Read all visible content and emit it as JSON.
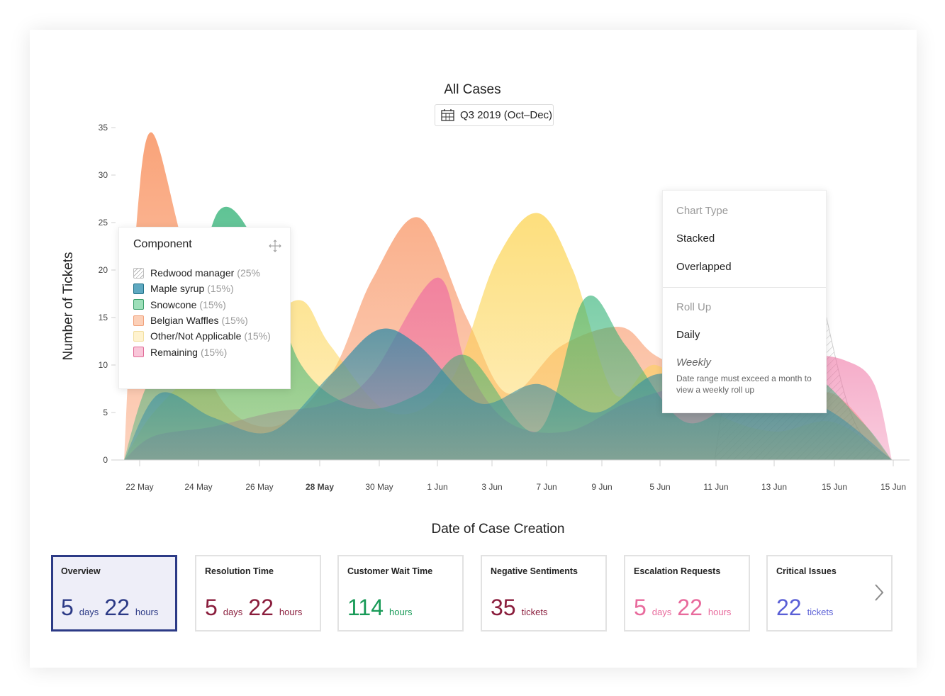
{
  "chart_data": {
    "type": "area",
    "title": "All Cases",
    "xlabel": "Date of Case Creation",
    "ylabel": "Number of Tickets",
    "ylim": [
      0,
      35
    ],
    "yticks": [
      0,
      5,
      10,
      15,
      20,
      25,
      30,
      35
    ],
    "categories": [
      "22 May",
      "24 May",
      "26 May",
      "28 May",
      "30 May",
      "1 Jun",
      "3 Jun",
      "7 Jun",
      "9 Jun",
      "5 Jun",
      "11 Jun",
      "13 Jun",
      "15 Jun",
      "15 Jun"
    ],
    "series": [
      {
        "name": "Redwood manager",
        "pattern": "hatch",
        "color": "#bdbdbd",
        "points": [
          [
            10,
            0
          ],
          [
            10.5,
            20
          ],
          [
            11.0,
            27.5
          ],
          [
            11.5,
            25
          ],
          [
            12.3,
            5
          ],
          [
            13,
            0
          ]
        ]
      },
      {
        "name": "Maple syrup",
        "color": "#2d8aa6",
        "points": [
          [
            0,
            0
          ],
          [
            0.6,
            7
          ],
          [
            1.5,
            4.5
          ],
          [
            2.5,
            3
          ],
          [
            3.5,
            9
          ],
          [
            4.3,
            13.7
          ],
          [
            5,
            12
          ],
          [
            6,
            6
          ],
          [
            7,
            8
          ],
          [
            8,
            5
          ],
          [
            9,
            9
          ],
          [
            10,
            8
          ],
          [
            11,
            7.5
          ],
          [
            12,
            5
          ],
          [
            13,
            0
          ]
        ]
      },
      {
        "name": "Snowcone",
        "color": "#27ae6f",
        "points": [
          [
            0,
            0
          ],
          [
            0.4,
            8
          ],
          [
            1,
            12
          ],
          [
            1.6,
            26.2
          ],
          [
            2.3,
            22
          ],
          [
            3,
            10
          ],
          [
            4,
            5.5
          ],
          [
            5,
            7
          ],
          [
            5.8,
            11
          ],
          [
            7,
            3
          ],
          [
            7.8,
            17
          ],
          [
            8.5,
            12
          ],
          [
            9.5,
            4
          ],
          [
            10.5,
            7
          ],
          [
            11.5,
            9.5
          ],
          [
            12.5,
            4
          ],
          [
            13,
            0
          ]
        ]
      },
      {
        "name": "Belgian Waffles",
        "color": "#f7834a",
        "points": [
          [
            0,
            0
          ],
          [
            0.2,
            24
          ],
          [
            0.45,
            34.5
          ],
          [
            0.9,
            25
          ],
          [
            1.5,
            8
          ],
          [
            2.5,
            3.5
          ],
          [
            3.5,
            9
          ],
          [
            4.2,
            19
          ],
          [
            5.0,
            25.5
          ],
          [
            5.8,
            15
          ],
          [
            6.5,
            7
          ],
          [
            7.4,
            12
          ],
          [
            8.4,
            14
          ],
          [
            9,
            11
          ],
          [
            10,
            8
          ],
          [
            11,
            5
          ],
          [
            12,
            7
          ],
          [
            13,
            0
          ]
        ]
      },
      {
        "name": "Other/Not Applicable",
        "color": "#fcd34f",
        "points": [
          [
            0,
            0
          ],
          [
            0.5,
            5
          ],
          [
            1.5,
            11
          ],
          [
            2.3,
            14
          ],
          [
            3,
            16.8
          ],
          [
            3.5,
            12
          ],
          [
            4.5,
            5
          ],
          [
            5.5,
            8
          ],
          [
            6.3,
            21
          ],
          [
            7,
            26
          ],
          [
            7.6,
            20
          ],
          [
            8.3,
            7
          ],
          [
            9,
            10
          ],
          [
            10,
            5
          ],
          [
            11,
            3
          ],
          [
            12,
            4
          ],
          [
            13,
            0
          ]
        ]
      },
      {
        "name": "Remaining",
        "color": "#ee6fa1",
        "points": [
          [
            0,
            0
          ],
          [
            0.5,
            2.5
          ],
          [
            1.5,
            3.5
          ],
          [
            2.5,
            5
          ],
          [
            3.5,
            6
          ],
          [
            4.2,
            9
          ],
          [
            5.3,
            19.2
          ],
          [
            5.8,
            10
          ],
          [
            6.5,
            4
          ],
          [
            7.5,
            3
          ],
          [
            8.5,
            6
          ],
          [
            9.5,
            8
          ],
          [
            10.5,
            10
          ],
          [
            11.5,
            11
          ],
          [
            12.2,
            10.5
          ],
          [
            12.7,
            8
          ],
          [
            13,
            0
          ]
        ]
      }
    ],
    "grid": false,
    "legend_position": "left"
  },
  "date_filter": {
    "label": "Q3 2019 (Oct–Dec)",
    "icon": "calendar-icon"
  },
  "legend": {
    "title": "Component",
    "move_icon": "move-icon",
    "items": [
      {
        "name": "Redwood manager",
        "pct": "(25%",
        "color": "#bdbdbd",
        "fill": "#f3f3f3",
        "pattern": "hatch"
      },
      {
        "name": "Maple syrup",
        "pct": "(15%)",
        "color": "#1e6f86",
        "fill": "#5fa9c1"
      },
      {
        "name": "Snowcone",
        "pct": "(15%)",
        "color": "#3a9e6a",
        "fill": "#9ddfb9"
      },
      {
        "name": "Belgian Waffles",
        "pct": "(15%)",
        "color": "#f0a07a",
        "fill": "#fcd0b8"
      },
      {
        "name": "Other/Not Applicable",
        "pct": "(15%)",
        "color": "#f2dfa0",
        "fill": "#fff3cf"
      },
      {
        "name": "Remaining",
        "pct": "(15%)",
        "color": "#e06a97",
        "fill": "#f9c6d9"
      }
    ]
  },
  "menu": {
    "chart_type_header": "Chart Type",
    "stacked": "Stacked",
    "overlapped": "Overlapped",
    "roll_up_header": "Roll Up",
    "daily": "Daily",
    "weekly": "Weekly",
    "weekly_note": "Date range must exceed a month to view a weekly roll up"
  },
  "metrics": [
    {
      "title": "Overview",
      "active": true,
      "color": "#2c3a86",
      "parts": [
        [
          "5",
          "days"
        ],
        [
          "22",
          "hours"
        ]
      ]
    },
    {
      "title": "Resolution Time",
      "color": "#8a1d3c",
      "parts": [
        [
          "5",
          "days"
        ],
        [
          "22",
          "hours"
        ]
      ]
    },
    {
      "title": "Customer Wait Time",
      "color": "#189a57",
      "parts": [
        [
          "114",
          "hours"
        ]
      ]
    },
    {
      "title": "Negative Sentiments",
      "color": "#8a1d3c",
      "parts": [
        [
          "35",
          "tickets"
        ]
      ]
    },
    {
      "title": "Escalation Requests",
      "color": "#e86a9c",
      "parts": [
        [
          "5",
          "days"
        ],
        [
          "22",
          "hours"
        ]
      ]
    },
    {
      "title": "Critical Issues",
      "color": "#5a5fd6",
      "parts": [
        [
          "22",
          "tickets"
        ]
      ]
    }
  ],
  "next_icon": "chevron-right-icon"
}
